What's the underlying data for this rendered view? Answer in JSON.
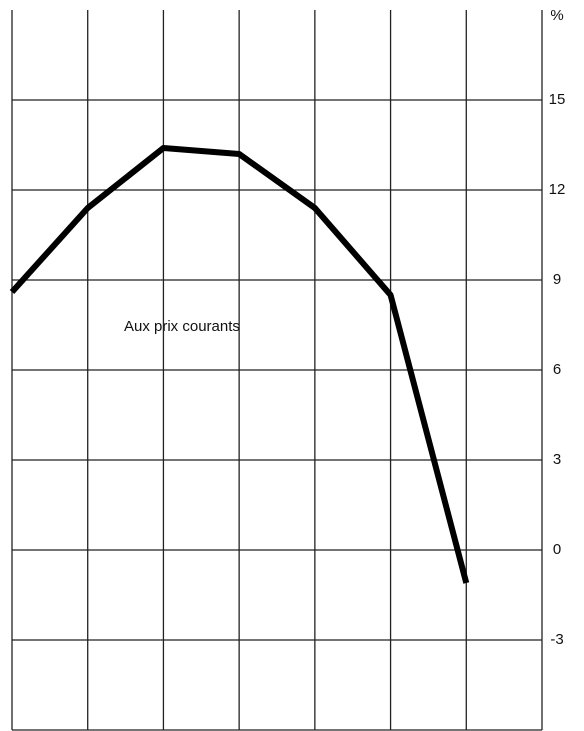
{
  "chart_data": {
    "type": "line",
    "ylabel": "%",
    "annotation": "Aux prix courants",
    "categories": [
      null,
      null,
      null,
      null,
      null,
      null,
      null,
      null
    ],
    "series": [
      {
        "color": "#000000",
        "values": [
          8.6,
          11.4,
          13.4,
          13.2,
          11.4,
          8.5,
          -1.1,
          null
        ]
      }
    ],
    "ylim": [
      -6,
      18
    ],
    "yticks": [
      -3,
      0,
      3,
      6,
      9,
      12,
      15
    ],
    "grid": true
  }
}
